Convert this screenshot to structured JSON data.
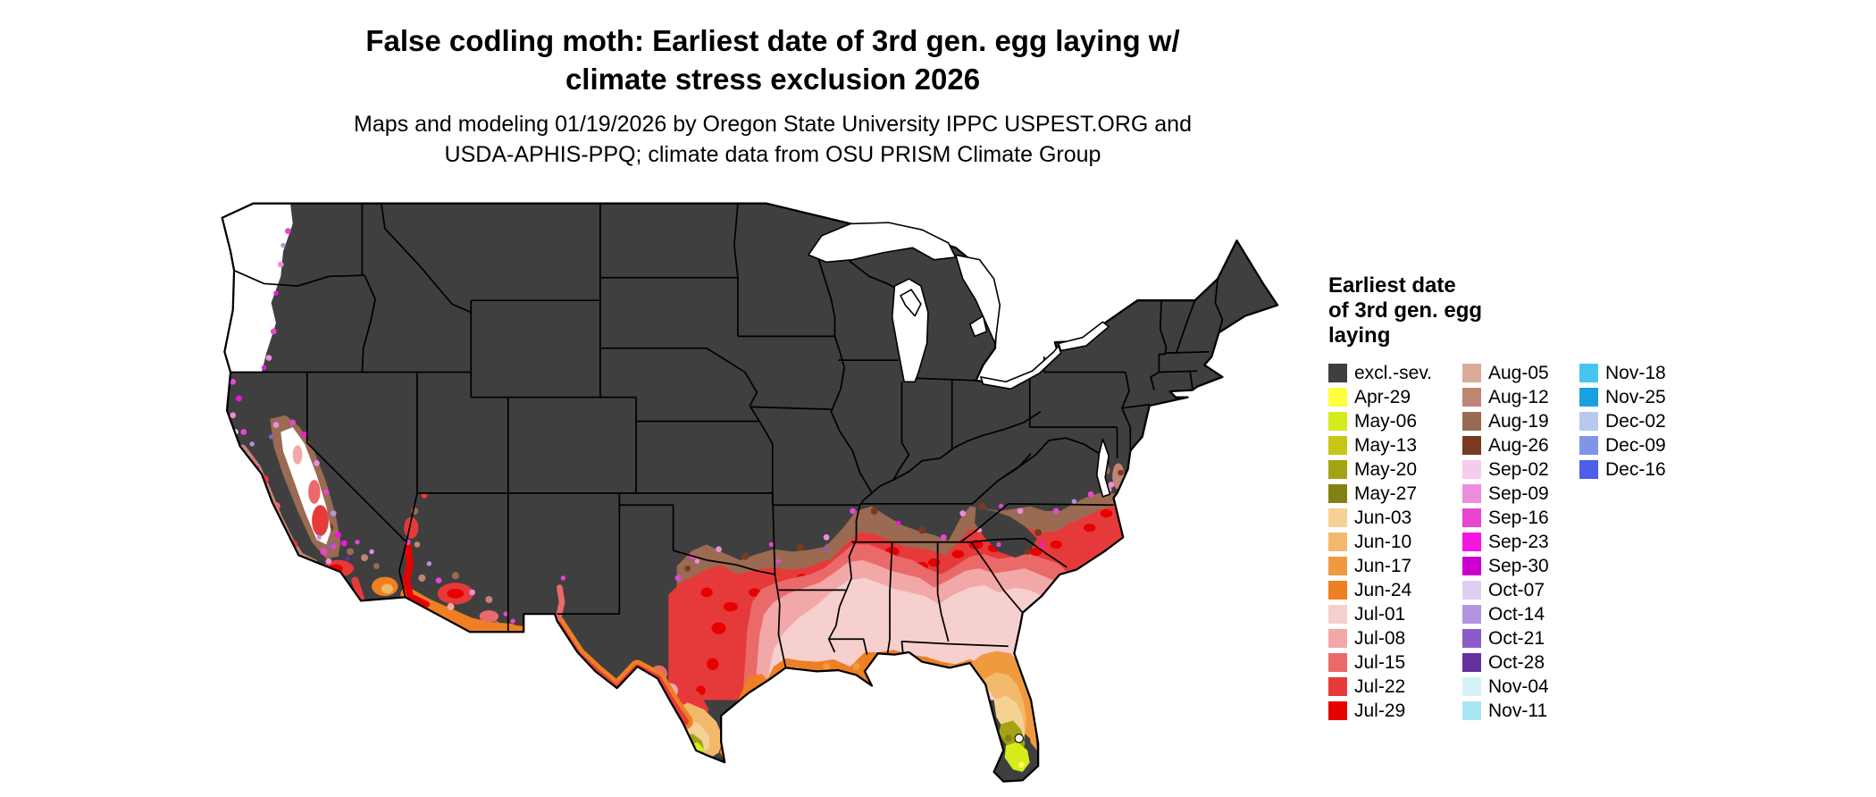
{
  "title": {
    "line1": "False codling moth: Earliest date of 3rd gen. egg laying w/",
    "line2": "climate stress exclusion 2026"
  },
  "subtitle": {
    "line1": "Maps and modeling 01/19/2026 by Oregon State University IPPC USPEST.ORG and",
    "line2": "USDA-APHIS-PPQ; climate data from OSU PRISM Climate Group"
  },
  "legend": {
    "title_lines": [
      "Earliest date",
      "of 3rd gen. egg",
      "laying"
    ],
    "columns": [
      {
        "items": [
          {
            "key": "excl",
            "label": "excl.-sev."
          },
          {
            "key": "apr29",
            "label": "Apr-29"
          },
          {
            "key": "may06",
            "label": "May-06"
          },
          {
            "key": "may13",
            "label": "May-13"
          },
          {
            "key": "may20",
            "label": "May-20"
          },
          {
            "key": "may27",
            "label": "May-27"
          },
          {
            "key": "jun03",
            "label": "Jun-03"
          },
          {
            "key": "jun10",
            "label": "Jun-10"
          },
          {
            "key": "jun17",
            "label": "Jun-17"
          },
          {
            "key": "jun24",
            "label": "Jun-24"
          },
          {
            "key": "jul01",
            "label": "Jul-01"
          },
          {
            "key": "jul08",
            "label": "Jul-08"
          },
          {
            "key": "jul15",
            "label": "Jul-15"
          },
          {
            "key": "jul22",
            "label": "Jul-22"
          },
          {
            "key": "jul29",
            "label": "Jul-29"
          }
        ]
      },
      {
        "items": [
          {
            "key": "aug05",
            "label": "Aug-05"
          },
          {
            "key": "aug12",
            "label": "Aug-12"
          },
          {
            "key": "aug19",
            "label": "Aug-19"
          },
          {
            "key": "aug26",
            "label": "Aug-26"
          },
          {
            "key": "sep02",
            "label": "Sep-02"
          },
          {
            "key": "sep09",
            "label": "Sep-09"
          },
          {
            "key": "sep16",
            "label": "Sep-16"
          },
          {
            "key": "sep23",
            "label": "Sep-23"
          },
          {
            "key": "sep30",
            "label": "Sep-30"
          },
          {
            "key": "oct07",
            "label": "Oct-07"
          },
          {
            "key": "oct14",
            "label": "Oct-14"
          },
          {
            "key": "oct21",
            "label": "Oct-21"
          },
          {
            "key": "oct28",
            "label": "Oct-28"
          },
          {
            "key": "nov04",
            "label": "Nov-04"
          },
          {
            "key": "nov11",
            "label": "Nov-11"
          }
        ]
      },
      {
        "items": [
          {
            "key": "nov18",
            "label": "Nov-18"
          },
          {
            "key": "nov25",
            "label": "Nov-25"
          },
          {
            "key": "dec02",
            "label": "Dec-02"
          },
          {
            "key": "dec09",
            "label": "Dec-09"
          },
          {
            "key": "dec16",
            "label": "Dec-16"
          }
        ]
      }
    ]
  },
  "palette": {
    "excl": "#3f3f3f",
    "apr29": "#ffff40",
    "may06": "#d4ec1c",
    "may13": "#c6c616",
    "may20": "#a3a314",
    "may27": "#828214",
    "jun03": "#f5d194",
    "jun10": "#f3b96b",
    "jun17": "#f09a40",
    "jun24": "#ee7f22",
    "jul01": "#f6cfcf",
    "jul08": "#f3a8a8",
    "jul15": "#ea6a6a",
    "jul22": "#e63a3a",
    "jul29": "#e60000",
    "aug05": "#dcaa9b",
    "aug12": "#c08573",
    "aug19": "#9a6a52",
    "aug26": "#7a3a20",
    "sep02": "#f6ccee",
    "sep09": "#ec8cdd",
    "sep16": "#e646d2",
    "sep23": "#f515e0",
    "sep30": "#cc00cc",
    "oct07": "#ddd0f0",
    "oct14": "#b394e0",
    "oct21": "#8a5cc8",
    "oct28": "#63309e",
    "nov04": "#d5f3f6",
    "nov11": "#a8e6f3",
    "nov18": "#45c5f0",
    "nov25": "#18a0e0",
    "dec02": "#b8c8f0",
    "dec09": "#8095e8",
    "dec16": "#4d5ee8",
    "white": "#ffffff"
  }
}
